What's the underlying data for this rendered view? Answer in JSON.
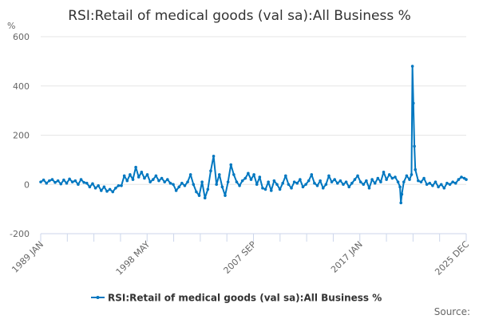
{
  "chart_data": {
    "type": "line",
    "title": "RSI:Retail of medical goods (val sa):All Business %",
    "ylabel": "%",
    "xlabel": "",
    "ylim": [
      -200,
      600
    ],
    "yticks": [
      600,
      400,
      200,
      0,
      -200
    ],
    "xlim": [
      1989.0,
      2025.917
    ],
    "xtick_labels": [
      "1989 JAN",
      "1998 MAY",
      "2007 SEP",
      "2017 JAN",
      "2025 DEC"
    ],
    "grid": true,
    "legend_position": "bottom-center",
    "colors": {
      "series": "#0077c0",
      "grid": "#e6e6e6",
      "axis": "#ccd6eb"
    },
    "series": [
      {
        "name": "RSI:Retail of medical goods (val sa):All Business %",
        "points": [
          [
            1989.0,
            10
          ],
          [
            1989.25,
            18
          ],
          [
            1989.5,
            5
          ],
          [
            1989.75,
            15
          ],
          [
            1990.0,
            20
          ],
          [
            1990.25,
            8
          ],
          [
            1990.5,
            15
          ],
          [
            1990.75,
            2
          ],
          [
            1991.0,
            18
          ],
          [
            1991.25,
            5
          ],
          [
            1991.5,
            22
          ],
          [
            1991.75,
            10
          ],
          [
            1992.0,
            15
          ],
          [
            1992.25,
            0
          ],
          [
            1992.5,
            20
          ],
          [
            1992.75,
            8
          ],
          [
            1993.0,
            5
          ],
          [
            1993.25,
            -10
          ],
          [
            1993.5,
            3
          ],
          [
            1993.75,
            -15
          ],
          [
            1994.0,
            -5
          ],
          [
            1994.25,
            -25
          ],
          [
            1994.5,
            -10
          ],
          [
            1994.75,
            -28
          ],
          [
            1995.0,
            -20
          ],
          [
            1995.25,
            -30
          ],
          [
            1995.5,
            -15
          ],
          [
            1995.75,
            -5
          ],
          [
            1996.0,
            -5
          ],
          [
            1996.25,
            35
          ],
          [
            1996.5,
            15
          ],
          [
            1996.75,
            40
          ],
          [
            1997.0,
            20
          ],
          [
            1997.25,
            70
          ],
          [
            1997.5,
            30
          ],
          [
            1997.75,
            50
          ],
          [
            1998.0,
            25
          ],
          [
            1998.25,
            40
          ],
          [
            1998.5,
            10
          ],
          [
            1998.75,
            20
          ],
          [
            1999.0,
            35
          ],
          [
            1999.25,
            15
          ],
          [
            1999.5,
            25
          ],
          [
            1999.75,
            10
          ],
          [
            2000.0,
            20
          ],
          [
            2000.25,
            5
          ],
          [
            2000.5,
            0
          ],
          [
            2000.75,
            -25
          ],
          [
            2001.0,
            -10
          ],
          [
            2001.25,
            5
          ],
          [
            2001.5,
            -5
          ],
          [
            2001.75,
            10
          ],
          [
            2002.0,
            40
          ],
          [
            2002.25,
            0
          ],
          [
            2002.5,
            -30
          ],
          [
            2002.75,
            -45
          ],
          [
            2003.0,
            10
          ],
          [
            2003.25,
            -55
          ],
          [
            2003.5,
            -20
          ],
          [
            2003.75,
            55
          ],
          [
            2004.0,
            115
          ],
          [
            2004.25,
            0
          ],
          [
            2004.5,
            40
          ],
          [
            2004.75,
            -10
          ],
          [
            2005.0,
            -45
          ],
          [
            2005.25,
            10
          ],
          [
            2005.5,
            80
          ],
          [
            2005.75,
            40
          ],
          [
            2006.0,
            10
          ],
          [
            2006.25,
            -5
          ],
          [
            2006.5,
            15
          ],
          [
            2006.75,
            25
          ],
          [
            2007.0,
            45
          ],
          [
            2007.25,
            20
          ],
          [
            2007.5,
            40
          ],
          [
            2007.75,
            0
          ],
          [
            2008.0,
            30
          ],
          [
            2008.25,
            -15
          ],
          [
            2008.5,
            -20
          ],
          [
            2008.75,
            10
          ],
          [
            2009.0,
            -25
          ],
          [
            2009.25,
            15
          ],
          [
            2009.5,
            0
          ],
          [
            2009.75,
            -20
          ],
          [
            2010.0,
            5
          ],
          [
            2010.25,
            35
          ],
          [
            2010.5,
            0
          ],
          [
            2010.75,
            -15
          ],
          [
            2011.0,
            10
          ],
          [
            2011.25,
            5
          ],
          [
            2011.5,
            20
          ],
          [
            2011.75,
            -10
          ],
          [
            2012.0,
            0
          ],
          [
            2012.25,
            15
          ],
          [
            2012.5,
            40
          ],
          [
            2012.75,
            5
          ],
          [
            2013.0,
            -5
          ],
          [
            2013.25,
            15
          ],
          [
            2013.5,
            -15
          ],
          [
            2013.75,
            0
          ],
          [
            2014.0,
            35
          ],
          [
            2014.25,
            10
          ],
          [
            2014.5,
            20
          ],
          [
            2014.75,
            5
          ],
          [
            2015.0,
            15
          ],
          [
            2015.25,
            0
          ],
          [
            2015.5,
            10
          ],
          [
            2015.75,
            -10
          ],
          [
            2016.0,
            5
          ],
          [
            2016.25,
            20
          ],
          [
            2016.5,
            35
          ],
          [
            2016.75,
            10
          ],
          [
            2017.0,
            0
          ],
          [
            2017.25,
            15
          ],
          [
            2017.5,
            -15
          ],
          [
            2017.75,
            20
          ],
          [
            2018.0,
            5
          ],
          [
            2018.25,
            25
          ],
          [
            2018.5,
            10
          ],
          [
            2018.75,
            50
          ],
          [
            2019.0,
            20
          ],
          [
            2019.25,
            40
          ],
          [
            2019.5,
            25
          ],
          [
            2019.75,
            30
          ],
          [
            2020.0,
            10
          ],
          [
            2020.17,
            -10
          ],
          [
            2020.25,
            -75
          ],
          [
            2020.33,
            -40
          ],
          [
            2020.5,
            10
          ],
          [
            2020.75,
            35
          ],
          [
            2021.0,
            20
          ],
          [
            2021.17,
            40
          ],
          [
            2021.25,
            480
          ],
          [
            2021.33,
            330
          ],
          [
            2021.42,
            155
          ],
          [
            2021.5,
            60
          ],
          [
            2021.75,
            15
          ],
          [
            2022.0,
            10
          ],
          [
            2022.25,
            25
          ],
          [
            2022.5,
            0
          ],
          [
            2022.75,
            5
          ],
          [
            2023.0,
            -5
          ],
          [
            2023.25,
            10
          ],
          [
            2023.5,
            -10
          ],
          [
            2023.75,
            0
          ],
          [
            2024.0,
            -15
          ],
          [
            2024.25,
            5
          ],
          [
            2024.5,
            0
          ],
          [
            2024.75,
            10
          ],
          [
            2025.0,
            5
          ],
          [
            2025.25,
            20
          ],
          [
            2025.5,
            30
          ],
          [
            2025.75,
            25
          ],
          [
            2025.917,
            20
          ]
        ]
      }
    ]
  },
  "footer": {
    "source_label": "Source:"
  }
}
